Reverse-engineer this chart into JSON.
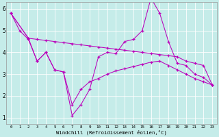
{
  "xlabel": "Windchill (Refroidissement éolien,°C)",
  "background_color": "#c5ece9",
  "line_color": "#bb00bb",
  "grid_color": "#ffffff",
  "xlim": [
    -0.5,
    23.5
  ],
  "ylim": [
    0.7,
    6.3
  ],
  "xticks": [
    0,
    1,
    2,
    3,
    4,
    5,
    6,
    7,
    8,
    9,
    10,
    11,
    12,
    13,
    14,
    15,
    16,
    17,
    18,
    19,
    20,
    21,
    22,
    23
  ],
  "yticks": [
    1,
    2,
    3,
    4,
    5,
    6
  ],
  "series": [
    {
      "x": [
        0,
        1,
        2,
        3,
        4,
        5,
        6,
        7,
        8,
        9,
        10,
        11,
        12,
        13,
        14,
        15,
        16,
        17,
        18,
        19,
        20,
        21,
        22,
        23
      ],
      "y": [
        5.8,
        5.0,
        4.6,
        3.6,
        4.0,
        3.2,
        3.1,
        1.1,
        1.6,
        2.3,
        3.8,
        4.0,
        3.95,
        4.5,
        4.6,
        5.0,
        6.5,
        5.8,
        4.5,
        3.5,
        3.4,
        3.0,
        2.85,
        2.5
      ]
    },
    {
      "x": [
        0,
        2,
        3,
        4,
        5,
        6,
        7,
        8,
        9,
        10,
        11,
        12,
        13,
        14,
        15,
        16,
        17,
        18,
        19,
        20,
        21,
        22,
        23
      ],
      "y": [
        5.8,
        4.65,
        4.6,
        4.55,
        4.5,
        4.45,
        4.4,
        4.35,
        4.3,
        4.25,
        4.2,
        4.15,
        4.1,
        4.05,
        4.0,
        3.95,
        3.9,
        3.85,
        3.8,
        3.6,
        3.5,
        3.4,
        2.5
      ]
    },
    {
      "x": [
        0,
        2,
        3,
        4,
        5,
        6,
        7,
        8,
        9,
        10,
        11,
        12,
        13,
        14,
        15,
        16,
        17,
        18,
        19,
        20,
        21,
        22,
        23
      ],
      "y": [
        5.8,
        4.65,
        3.6,
        4.0,
        3.2,
        3.1,
        1.6,
        2.3,
        2.65,
        2.8,
        3.0,
        3.15,
        3.25,
        3.35,
        3.45,
        3.55,
        3.6,
        3.4,
        3.2,
        3.0,
        2.8,
        2.65,
        2.5
      ]
    }
  ]
}
